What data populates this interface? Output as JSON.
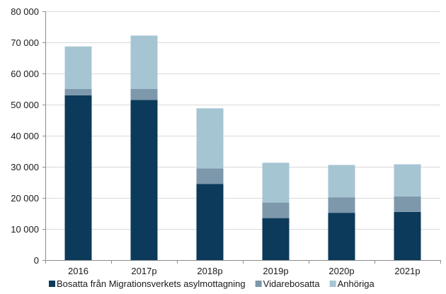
{
  "chart_data": {
    "type": "bar",
    "stacked": true,
    "categories": [
      "2016",
      "2017p",
      "2018p",
      "2019p",
      "2020p",
      "2021p"
    ],
    "series": [
      {
        "name": "Bosatta från Migrationsverkets asylmottagning",
        "color": "#0b3a5a",
        "values": [
          53000,
          51500,
          24500,
          13500,
          15200,
          15500
        ]
      },
      {
        "name": "Vidarebosatta",
        "color": "#7d98ab",
        "values": [
          2000,
          3500,
          5000,
          5000,
          5000,
          5000
        ]
      },
      {
        "name": "Anhöriga",
        "color": "#a6c5d3",
        "values": [
          13700,
          17200,
          19300,
          12800,
          10400,
          10300
        ]
      }
    ],
    "ylim": [
      0,
      80000
    ],
    "yticks": [
      0,
      10000,
      20000,
      30000,
      40000,
      50000,
      60000,
      70000,
      80000
    ],
    "ytick_labels": [
      "0",
      "10 000",
      "20 000",
      "30 000",
      "40 000",
      "50 000",
      "60 000",
      "70 000",
      "80 000"
    ],
    "grid": true,
    "legend_position": "bottom",
    "title": "",
    "xlabel": "",
    "ylabel": ""
  }
}
